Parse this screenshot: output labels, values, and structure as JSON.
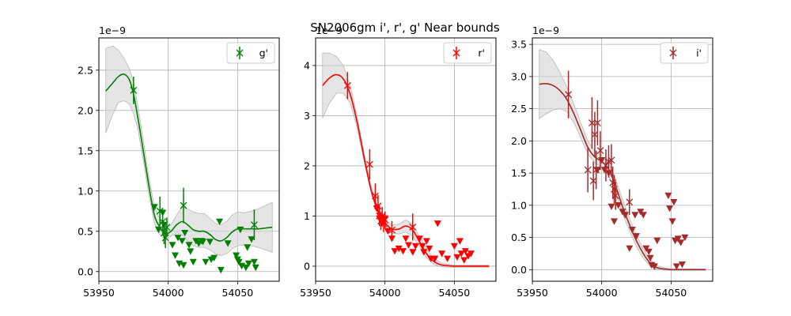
{
  "figure": {
    "title": "SN2006gm  i', r', g' Near bounds"
  },
  "chart_data": [
    {
      "type": "scatter",
      "title": "",
      "xlabel": "",
      "ylabel": "",
      "y_offset_label": "1e−9",
      "color": "#008000",
      "band_color": "#d3d3d3",
      "xlim": [
        53950,
        54080
      ],
      "ylim": [
        -0.12,
        2.9
      ],
      "x_ticks": [
        53950,
        54000,
        54050
      ],
      "x_tick_labels": [
        "53950",
        "54000",
        "54050"
      ],
      "y_ticks": [
        0.0,
        0.5,
        1.0,
        1.5,
        2.0,
        2.5
      ],
      "y_tick_labels": [
        "0.0",
        "0.5",
        "1.0",
        "1.5",
        "2.0",
        "2.5"
      ],
      "grid": true,
      "legend": {
        "position": "top-right",
        "label": "g'"
      },
      "detections": [
        {
          "x": 53975,
          "y": 2.25,
          "err": 0.17
        },
        {
          "x": 53994,
          "y": 0.75,
          "err": 0.18
        },
        {
          "x": 53996,
          "y": 0.62,
          "err": 0.15
        },
        {
          "x": 53997,
          "y": 0.48,
          "err": 0.14
        },
        {
          "x": 53998,
          "y": 0.42,
          "err": 0.13
        },
        {
          "x": 53999,
          "y": 0.55,
          "err": 0.12
        },
        {
          "x": 54011,
          "y": 0.82,
          "err": 0.22
        },
        {
          "x": 54062,
          "y": 0.58,
          "err": 0.19
        }
      ],
      "upper_limits": [
        {
          "x": 53990,
          "y": 0.8
        },
        {
          "x": 53993,
          "y": 0.52
        },
        {
          "x": 53996,
          "y": 0.73
        },
        {
          "x": 53997,
          "y": 0.58
        },
        {
          "x": 54003,
          "y": 0.33
        },
        {
          "x": 54005,
          "y": 0.2
        },
        {
          "x": 54007,
          "y": 0.42
        },
        {
          "x": 54008,
          "y": 0.1
        },
        {
          "x": 54010,
          "y": 0.38
        },
        {
          "x": 54011,
          "y": 0.08
        },
        {
          "x": 54012,
          "y": 0.48
        },
        {
          "x": 54015,
          "y": 0.33
        },
        {
          "x": 54016,
          "y": 0.25
        },
        {
          "x": 54018,
          "y": 0.12
        },
        {
          "x": 54020,
          "y": 0.38
        },
        {
          "x": 54022,
          "y": 0.35
        },
        {
          "x": 54024,
          "y": 0.38
        },
        {
          "x": 54025,
          "y": 0.37
        },
        {
          "x": 54027,
          "y": 0.12
        },
        {
          "x": 54030,
          "y": 0.37
        },
        {
          "x": 54031,
          "y": 0.15
        },
        {
          "x": 54033,
          "y": 0.17
        },
        {
          "x": 54037,
          "y": 0.62
        },
        {
          "x": 54038,
          "y": 0.02
        },
        {
          "x": 54043,
          "y": 0.35
        },
        {
          "x": 54049,
          "y": 0.2
        },
        {
          "x": 54050,
          "y": 0.15
        },
        {
          "x": 54051,
          "y": 0.12
        },
        {
          "x": 54052,
          "y": 0.52
        },
        {
          "x": 54053,
          "y": 0.07
        },
        {
          "x": 54056,
          "y": 0.05
        },
        {
          "x": 54057,
          "y": 0.3
        },
        {
          "x": 54058,
          "y": 0.1
        },
        {
          "x": 54060,
          "y": 0.4
        },
        {
          "x": 54062,
          "y": 0.12
        },
        {
          "x": 54063,
          "y": 0.05
        }
      ],
      "fit": {
        "x": [
          53955,
          53960,
          53964,
          53968,
          53972,
          53975,
          53978,
          53982,
          53986,
          53990,
          53994,
          53998,
          54002,
          54006,
          54010,
          54014,
          54018,
          54022,
          54026,
          54030,
          54034,
          54038,
          54042,
          54046,
          54050,
          54055,
          54060,
          54065,
          54070,
          54075
        ],
        "y": [
          2.24,
          2.34,
          2.42,
          2.45,
          2.38,
          2.2,
          1.92,
          1.5,
          1.07,
          0.7,
          0.55,
          0.47,
          0.5,
          0.58,
          0.62,
          0.58,
          0.52,
          0.5,
          0.5,
          0.46,
          0.4,
          0.38,
          0.42,
          0.49,
          0.53,
          0.53,
          0.53,
          0.53,
          0.54,
          0.55
        ],
        "band_low": [
          1.72,
          1.95,
          2.1,
          2.12,
          2.08,
          1.96,
          1.78,
          1.38,
          0.96,
          0.6,
          0.45,
          0.4,
          0.44,
          0.48,
          0.46,
          0.38,
          0.32,
          0.3,
          0.3,
          0.27,
          0.22,
          0.2,
          0.22,
          0.28,
          0.32,
          0.33,
          0.32,
          0.3,
          0.27,
          0.24
        ],
        "band_high": [
          2.77,
          2.8,
          2.75,
          2.65,
          2.52,
          2.35,
          2.07,
          1.63,
          1.18,
          0.8,
          0.65,
          0.55,
          0.58,
          0.7,
          0.8,
          0.78,
          0.74,
          0.72,
          0.72,
          0.66,
          0.6,
          0.58,
          0.62,
          0.7,
          0.74,
          0.73,
          0.75,
          0.78,
          0.82,
          0.86
        ]
      }
    },
    {
      "type": "scatter",
      "title": "",
      "xlabel": "",
      "ylabel": "",
      "y_offset_label": "1e−9",
      "color": "#ff0000",
      "band_color": "#d3d3d3",
      "xlim": [
        53950,
        54080
      ],
      "ylim": [
        -0.3,
        4.55
      ],
      "x_ticks": [
        53950,
        54000,
        54050
      ],
      "x_tick_labels": [
        "53950",
        "54000",
        "54050"
      ],
      "y_ticks": [
        0,
        1,
        2,
        3,
        4
      ],
      "y_tick_labels": [
        "0",
        "1",
        "2",
        "3",
        "4"
      ],
      "grid": true,
      "legend": {
        "position": "top-right",
        "label": "r'"
      },
      "detections": [
        {
          "x": 53973,
          "y": 3.6,
          "err": 0.27
        },
        {
          "x": 53989,
          "y": 2.03,
          "err": 0.3
        },
        {
          "x": 53993,
          "y": 1.4,
          "err": 0.25
        },
        {
          "x": 53995,
          "y": 1.2,
          "err": 0.22
        },
        {
          "x": 53996,
          "y": 1.0,
          "err": 0.2
        },
        {
          "x": 53997,
          "y": 0.9,
          "err": 0.18
        },
        {
          "x": 53998,
          "y": 1.0,
          "err": 0.18
        },
        {
          "x": 53999,
          "y": 0.85,
          "err": 0.17
        },
        {
          "x": 54000,
          "y": 0.92,
          "err": 0.17
        },
        {
          "x": 54005,
          "y": 0.72,
          "err": 0.18
        },
        {
          "x": 54020,
          "y": 0.78,
          "err": 0.27
        }
      ],
      "upper_limits": [
        {
          "x": 53994,
          "y": 1.15
        },
        {
          "x": 53996,
          "y": 0.95
        },
        {
          "x": 53998,
          "y": 0.85
        },
        {
          "x": 54000,
          "y": 0.95
        },
        {
          "x": 54002,
          "y": 0.7
        },
        {
          "x": 54005,
          "y": 0.55
        },
        {
          "x": 54007,
          "y": 0.3
        },
        {
          "x": 54010,
          "y": 0.35
        },
        {
          "x": 54013,
          "y": 0.3
        },
        {
          "x": 54015,
          "y": 0.55
        },
        {
          "x": 54017,
          "y": 0.42
        },
        {
          "x": 54020,
          "y": 0.28
        },
        {
          "x": 54022,
          "y": 0.4
        },
        {
          "x": 54025,
          "y": 0.55
        },
        {
          "x": 54027,
          "y": 0.4
        },
        {
          "x": 54028,
          "y": 0.28
        },
        {
          "x": 54030,
          "y": 0.5
        },
        {
          "x": 54032,
          "y": 0.35
        },
        {
          "x": 54033,
          "y": 0.15
        },
        {
          "x": 54036,
          "y": 0.15
        },
        {
          "x": 54038,
          "y": 0.85
        },
        {
          "x": 54041,
          "y": 0.25
        },
        {
          "x": 54045,
          "y": 0.15
        },
        {
          "x": 54050,
          "y": 0.4
        },
        {
          "x": 54052,
          "y": 0.18
        },
        {
          "x": 54054,
          "y": 0.5
        },
        {
          "x": 54055,
          "y": 0.25
        },
        {
          "x": 54057,
          "y": 0.12
        },
        {
          "x": 54058,
          "y": 0.3
        },
        {
          "x": 54060,
          "y": 0.2
        },
        {
          "x": 54062,
          "y": 0.25
        }
      ],
      "fit": {
        "x": [
          53955,
          53960,
          53965,
          53970,
          53975,
          53980,
          53985,
          53990,
          53995,
          54000,
          54005,
          54010,
          54015,
          54020,
          54025,
          54030,
          54035,
          54040,
          54045,
          54050,
          54055,
          54060,
          54065,
          54070,
          54075
        ],
        "y": [
          3.6,
          3.75,
          3.82,
          3.73,
          3.42,
          2.86,
          2.16,
          1.52,
          1.1,
          0.87,
          0.74,
          0.74,
          0.8,
          0.72,
          0.48,
          0.25,
          0.1,
          0.03,
          0.01,
          0.0,
          0.0,
          0.0,
          0.0,
          0.0,
          0.0
        ],
        "band_low": [
          2.95,
          3.25,
          3.45,
          3.45,
          3.25,
          2.75,
          2.08,
          1.45,
          1.03,
          0.8,
          0.66,
          0.64,
          0.68,
          0.6,
          0.38,
          0.17,
          0.04,
          -0.01,
          -0.02,
          -0.02,
          -0.02,
          -0.02,
          -0.02,
          -0.02,
          -0.02
        ],
        "band_high": [
          4.25,
          4.25,
          4.18,
          4.0,
          3.6,
          2.97,
          2.24,
          1.59,
          1.17,
          0.94,
          0.82,
          0.84,
          0.92,
          0.84,
          0.58,
          0.33,
          0.16,
          0.07,
          0.04,
          0.02,
          0.02,
          0.02,
          0.02,
          0.02,
          0.02
        ]
      }
    },
    {
      "type": "scatter",
      "title": "",
      "xlabel": "",
      "ylabel": "",
      "y_offset_label": "1e−9",
      "color": "#a52a2a",
      "band_color": "#d3d3d3",
      "xlim": [
        53950,
        54080
      ],
      "ylim": [
        -0.18,
        3.6
      ],
      "x_ticks": [
        53950,
        54000,
        54050
      ],
      "x_tick_labels": [
        "53950",
        "54000",
        "54050"
      ],
      "y_ticks": [
        0.0,
        0.5,
        1.0,
        1.5,
        2.0,
        2.5,
        3.0,
        3.5
      ],
      "y_tick_labels": [
        "0.0",
        "0.5",
        "1.0",
        "1.5",
        "2.0",
        "2.5",
        "3.0",
        "3.5"
      ],
      "grid": true,
      "legend": {
        "position": "top-right",
        "label": "i'"
      },
      "detections": [
        {
          "x": 53976,
          "y": 2.72,
          "err": 0.37
        },
        {
          "x": 53990,
          "y": 1.55,
          "err": 0.35
        },
        {
          "x": 53993,
          "y": 2.28,
          "err": 0.4
        },
        {
          "x": 53994,
          "y": 1.38,
          "err": 0.3
        },
        {
          "x": 53995,
          "y": 2.1,
          "err": 0.35
        },
        {
          "x": 53996,
          "y": 1.55,
          "err": 0.3
        },
        {
          "x": 53997,
          "y": 2.28,
          "err": 0.35
        },
        {
          "x": 53999,
          "y": 1.85,
          "err": 0.3
        },
        {
          "x": 54003,
          "y": 1.62,
          "err": 0.25
        },
        {
          "x": 54005,
          "y": 1.68,
          "err": 0.25
        },
        {
          "x": 54007,
          "y": 1.7,
          "err": 0.25
        },
        {
          "x": 54008,
          "y": 1.35,
          "err": 0.25
        },
        {
          "x": 54009,
          "y": 1.25,
          "err": 0.22
        },
        {
          "x": 54010,
          "y": 1.15,
          "err": 0.22
        },
        {
          "x": 54020,
          "y": 1.05,
          "err": 0.2
        }
      ],
      "upper_limits": [
        {
          "x": 53997,
          "y": 1.55
        },
        {
          "x": 54000,
          "y": 1.7
        },
        {
          "x": 54002,
          "y": 1.55
        },
        {
          "x": 54005,
          "y": 1.5
        },
        {
          "x": 54007,
          "y": 0.98
        },
        {
          "x": 54009,
          "y": 0.75
        },
        {
          "x": 54012,
          "y": 1.0
        },
        {
          "x": 54015,
          "y": 0.9
        },
        {
          "x": 54017,
          "y": 0.85
        },
        {
          "x": 54020,
          "y": 0.33
        },
        {
          "x": 54022,
          "y": 0.62
        },
        {
          "x": 54024,
          "y": 0.85
        },
        {
          "x": 54025,
          "y": 0.52
        },
        {
          "x": 54028,
          "y": 0.9
        },
        {
          "x": 54030,
          "y": 0.85
        },
        {
          "x": 54032,
          "y": 0.33
        },
        {
          "x": 54034,
          "y": 0.28
        },
        {
          "x": 54035,
          "y": 0.18
        },
        {
          "x": 54036,
          "y": 0.07
        },
        {
          "x": 54038,
          "y": 0.05
        },
        {
          "x": 54040,
          "y": 0.45
        },
        {
          "x": 54048,
          "y": 1.15
        },
        {
          "x": 54049,
          "y": 0.95
        },
        {
          "x": 54051,
          "y": 0.75
        },
        {
          "x": 54052,
          "y": 1.05
        },
        {
          "x": 54053,
          "y": 0.45
        },
        {
          "x": 54054,
          "y": 0.05
        },
        {
          "x": 54055,
          "y": 0.48
        },
        {
          "x": 54057,
          "y": 0.42
        },
        {
          "x": 54058,
          "y": 0.08
        },
        {
          "x": 54060,
          "y": 0.5
        }
      ],
      "fit": {
        "x": [
          53955,
          53960,
          53965,
          53970,
          53975,
          53980,
          53985,
          53990,
          53995,
          54000,
          54005,
          54010,
          54015,
          54020,
          54025,
          54030,
          54035,
          54040,
          54045,
          54050,
          54055,
          54060,
          54065,
          54070,
          54075
        ],
        "y": [
          2.88,
          2.89,
          2.86,
          2.78,
          2.64,
          2.42,
          2.16,
          1.9,
          1.75,
          1.68,
          1.56,
          1.3,
          0.98,
          0.7,
          0.45,
          0.25,
          0.1,
          0.03,
          0.01,
          0.0,
          0.0,
          0.0,
          0.0,
          0.0,
          0.0
        ],
        "band_low": [
          2.35,
          2.42,
          2.48,
          2.5,
          2.45,
          2.28,
          2.04,
          1.8,
          1.66,
          1.59,
          1.46,
          1.19,
          0.87,
          0.6,
          0.36,
          0.18,
          0.05,
          0.0,
          -0.01,
          -0.01,
          -0.01,
          -0.01,
          -0.01,
          -0.01,
          -0.01
        ],
        "band_high": [
          3.42,
          3.38,
          3.25,
          3.06,
          2.83,
          2.57,
          2.28,
          2.0,
          1.84,
          1.77,
          1.66,
          1.41,
          1.09,
          0.8,
          0.54,
          0.32,
          0.15,
          0.06,
          0.03,
          0.01,
          0.01,
          0.01,
          0.01,
          0.01,
          0.01
        ]
      }
    }
  ]
}
